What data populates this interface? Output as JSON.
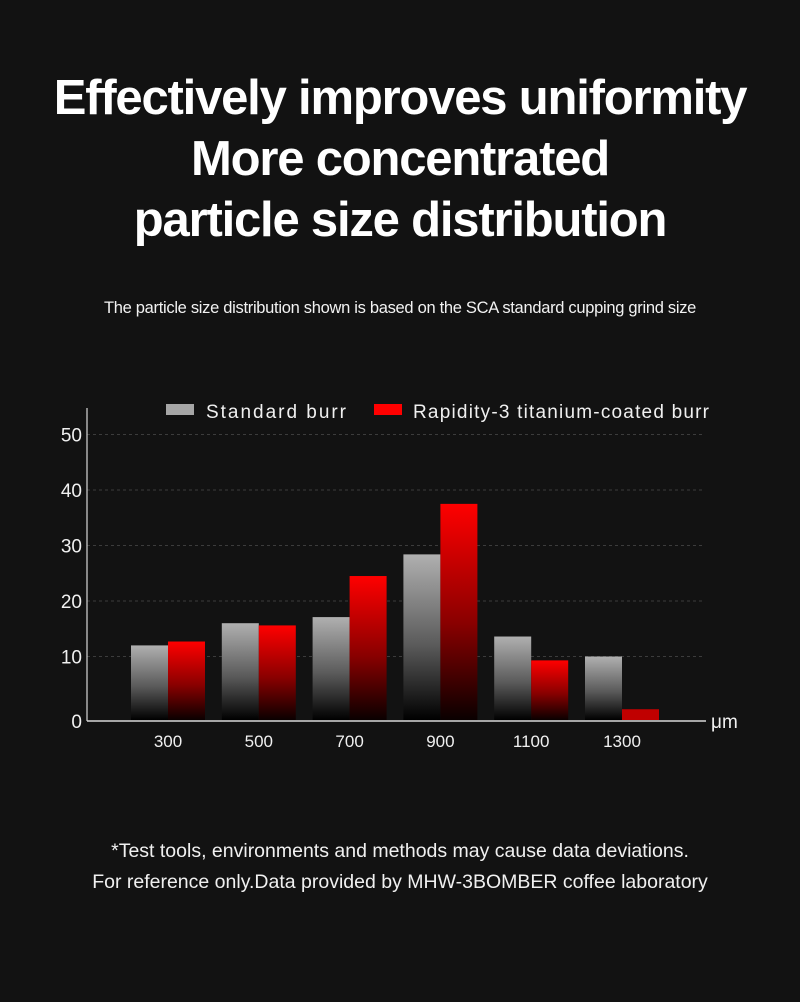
{
  "headline": {
    "line1": "Effectively improves uniformity",
    "line2": "More concentrated",
    "line3": "particle size distribution"
  },
  "subtitle": "The particle size distribution shown is based on the SCA standard cupping grind size",
  "footnote": {
    "line1": "*Test tools, environments and methods may cause data deviations.",
    "line2": "For reference only.Data provided by MHW-3BOMBER coffee laboratory"
  },
  "chart_data": {
    "type": "bar",
    "title": "",
    "xlabel": "",
    "x_unit": "μm",
    "ylabel": "",
    "categories": [
      "300",
      "500",
      "700",
      "900",
      "1100",
      "1300"
    ],
    "series": [
      {
        "name": "Standard burr",
        "color": "#a6a6a6",
        "values": [
          12.0,
          16.0,
          17.1,
          28.4,
          13.6,
          10.0
        ]
      },
      {
        "name": "Rapidity-3 titanium-coated burr",
        "color": "#ff0000",
        "values": [
          12.7,
          15.6,
          24.5,
          37.5,
          9.3,
          0.5
        ]
      }
    ],
    "ylim": [
      0,
      50
    ],
    "yticks": [
      "0",
      "10",
      "20",
      "30",
      "40",
      "50"
    ],
    "grid": true,
    "legend": "top"
  }
}
